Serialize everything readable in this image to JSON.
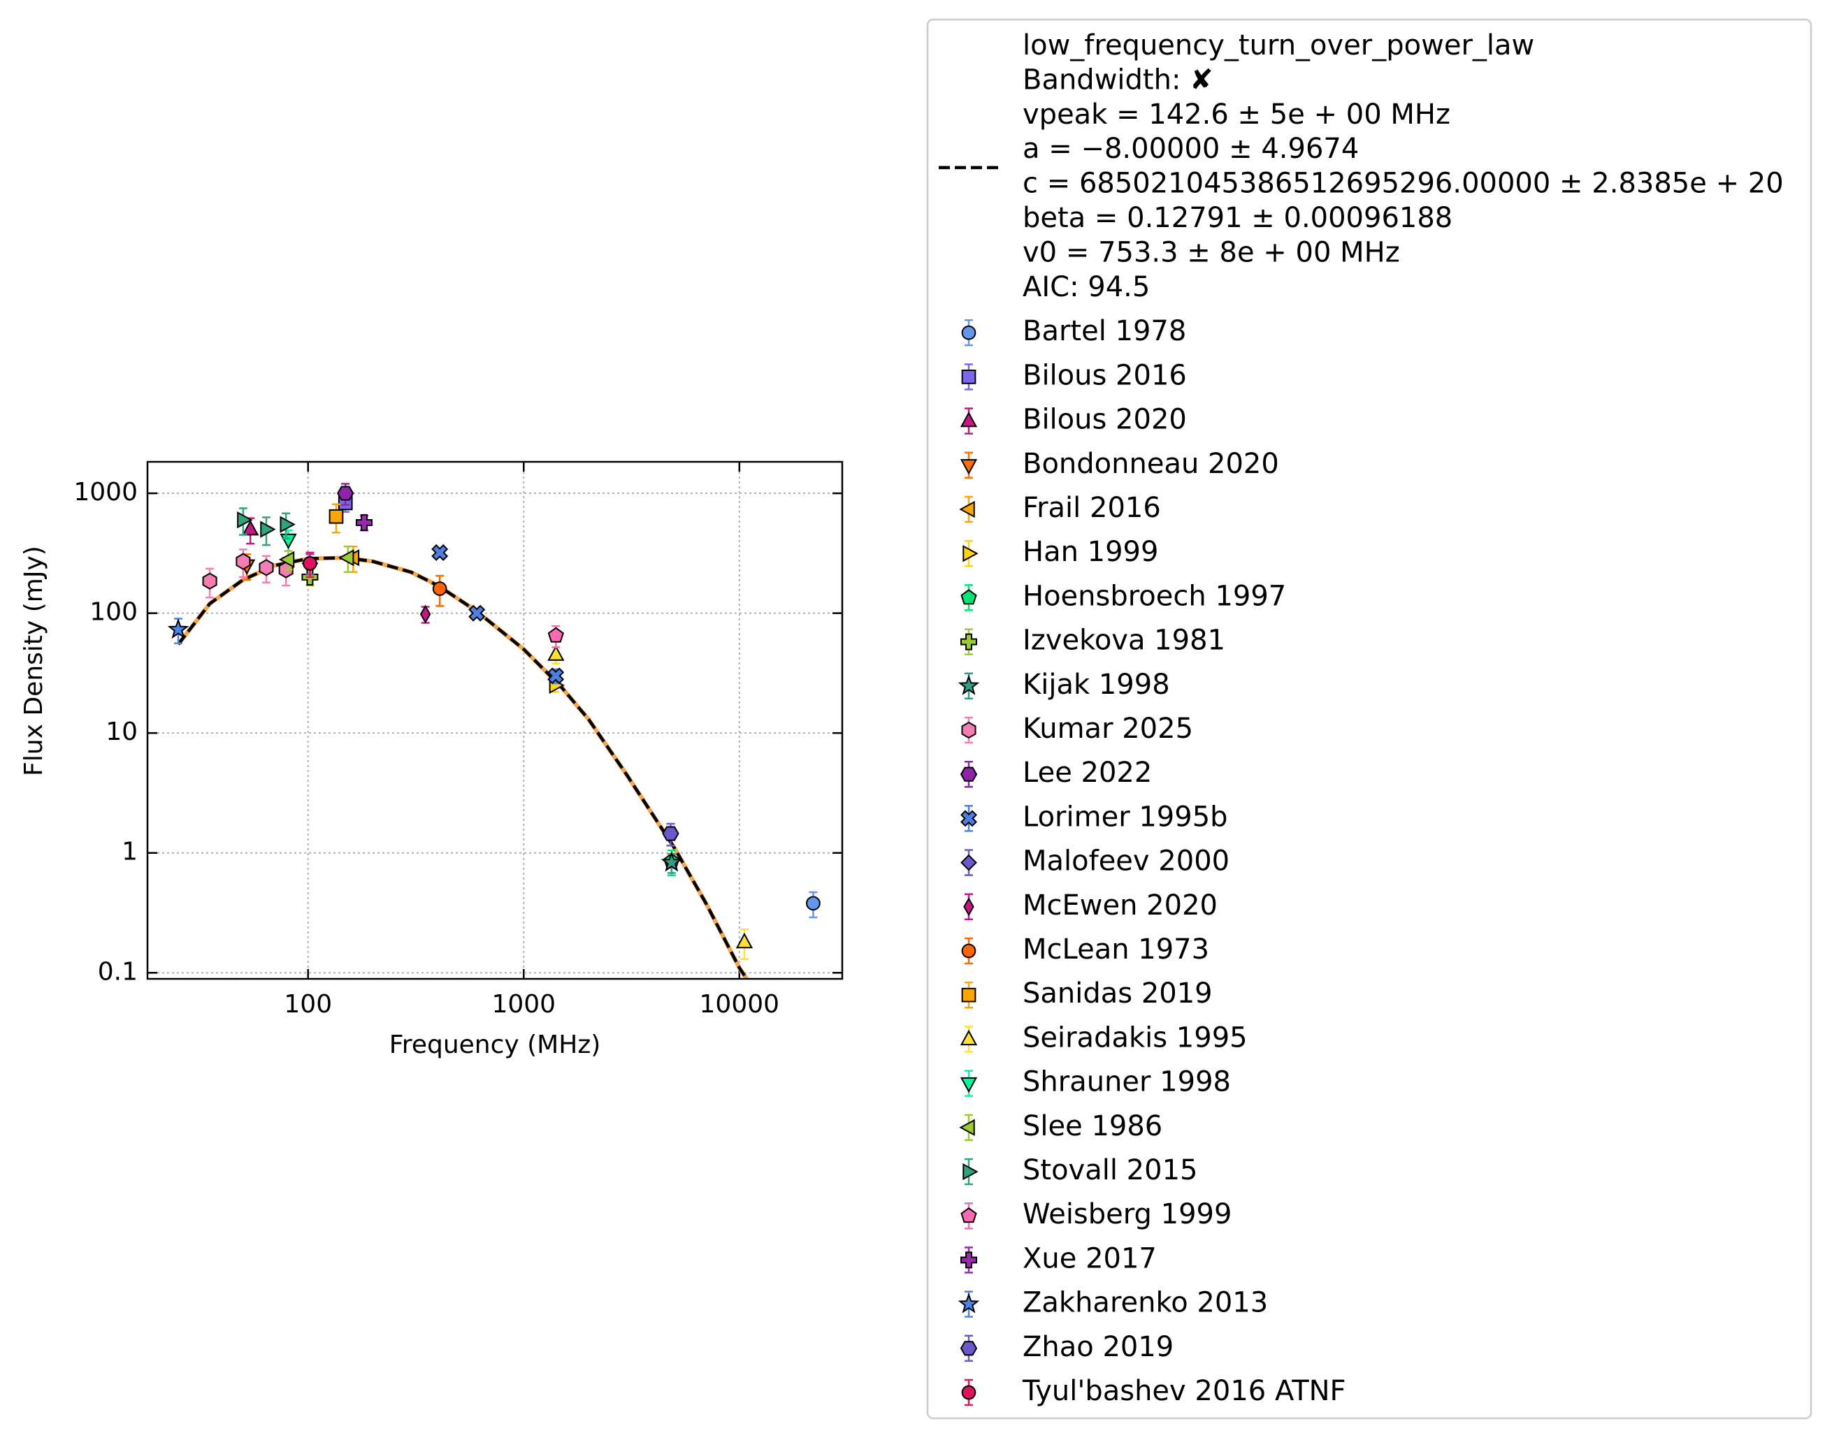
{
  "chart_data": {
    "type": "scatter",
    "xlabel": "Frequency (MHz)",
    "ylabel": "Flux Density (mJy)",
    "xscale": "log",
    "yscale": "log",
    "grid": true,
    "xlim": [
      18,
      30000
    ],
    "ylim": [
      0.089,
      1830
    ],
    "xticks": [
      100,
      1000,
      10000
    ],
    "yticks": [
      0.1,
      1,
      10,
      100,
      1000
    ],
    "fit": {
      "name": "low_frequency_turn_over_power_law",
      "color": "#000000",
      "band_color": "#f5a54a",
      "details": [
        "Bandwidth: ✘",
        "vpeak = 142.6 ± 5e + 00 MHz",
        "a = −8.00000 ± 4.9674",
        "c = 685021045386512695296.00000 ± 2.8385e + 20",
        "beta = 0.12791 ± 0.00096188",
        "v0 = 753.3 ± 8e + 00 MHz",
        "AIC: 94.5"
      ],
      "x": [
        25,
        35,
        50,
        70,
        100,
        150,
        200,
        300,
        400,
        600,
        1000,
        1500,
        2000,
        3000,
        5000,
        7000,
        10000,
        11000
      ],
      "values": [
        55,
        120,
        190,
        250,
        285,
        290,
        270,
        220,
        170,
        105,
        50,
        24,
        13,
        4.5,
        1.1,
        0.38,
        0.11,
        0.085
      ]
    },
    "series": [
      {
        "name": "Bartel 1978",
        "marker": "o",
        "color": "#6495ED",
        "x": [
          22000
        ],
        "values": [
          0.38
        ],
        "errors": [
          0.09
        ]
      },
      {
        "name": "Bilous 2016",
        "marker": "s",
        "color": "#7B68EE",
        "x": [
          149
        ],
        "values": [
          830
        ],
        "errors": [
          130
        ]
      },
      {
        "name": "Bilous 2020",
        "marker": "^",
        "color": "#C71585",
        "x": [
          54
        ],
        "values": [
          500
        ],
        "errors": [
          120
        ]
      },
      {
        "name": "Bondonneau 2020",
        "marker": "v",
        "color": "#FF6F00",
        "x": [
          52
        ],
        "values": [
          250
        ],
        "errors": [
          60
        ]
      },
      {
        "name": "Frail 2016",
        "marker": "<",
        "color": "#FFA500",
        "x": [
          162
        ],
        "values": [
          290
        ],
        "errors": [
          70
        ]
      },
      {
        "name": "Han 1999",
        "marker": ">",
        "color": "#FFD700",
        "x": [
          1400
        ],
        "values": [
          25
        ],
        "errors": [
          3
        ]
      },
      {
        "name": "Hoensbroech 1997",
        "marker": "p",
        "color": "#00E676",
        "x": [
          4850
        ],
        "values": [
          0.85
        ],
        "errors": [
          0.2
        ]
      },
      {
        "name": "Izvekova 1981",
        "marker": "P",
        "color": "#9ACD32",
        "x": [
          102
        ],
        "values": [
          200
        ],
        "errors": [
          30
        ]
      },
      {
        "name": "Kijak 1998",
        "marker": "*",
        "color": "#2E9E88",
        "x": [
          4850
        ],
        "values": [
          0.83
        ],
        "errors": [
          0.15
        ]
      },
      {
        "name": "Kumar 2025",
        "marker": "h",
        "color": "#F57DB3",
        "x": [
          35,
          50,
          64,
          79
        ],
        "values": [
          185,
          270,
          240,
          230
        ],
        "errors": [
          50,
          70,
          60,
          60
        ]
      },
      {
        "name": "Lee 2022",
        "marker": "H",
        "color": "#8E24AA",
        "x": [
          149
        ],
        "values": [
          1000
        ],
        "errors": [
          200
        ]
      },
      {
        "name": "Lorimer 1995b",
        "marker": "X",
        "color": "#4F7FE0",
        "x": [
          408,
          606,
          1408
        ],
        "values": [
          320,
          100,
          30
        ],
        "errors": [
          20,
          8,
          4
        ]
      },
      {
        "name": "Malofeev 2000",
        "marker": "D",
        "color": "#6A5ACD",
        "x": [
          102
        ],
        "values": [
          260
        ],
        "errors": [
          50
        ]
      },
      {
        "name": "McEwen 2020",
        "marker": "d",
        "color": "#C71585",
        "x": [
          350
        ],
        "values": [
          98
        ],
        "errors": [
          15
        ]
      },
      {
        "name": "McLean 1973",
        "marker": "o",
        "color": "#FF6600",
        "x": [
          408
        ],
        "values": [
          160
        ],
        "errors": [
          45
        ]
      },
      {
        "name": "Sanidas 2019",
        "marker": "s",
        "color": "#FFA500",
        "x": [
          135
        ],
        "values": [
          640
        ],
        "errors": [
          170
        ]
      },
      {
        "name": "Seiradakis 1995",
        "marker": "^",
        "color": "#FFE135",
        "x": [
          1410,
          10550
        ],
        "values": [
          45,
          0.18
        ],
        "errors": [
          7,
          0.05
        ]
      },
      {
        "name": "Shrauner 1998",
        "marker": "v",
        "color": "#00FA9A",
        "x": [
          81
        ],
        "values": [
          410
        ],
        "errors": [
          80
        ]
      },
      {
        "name": "Slee 1986",
        "marker": "<",
        "color": "#9ACD32",
        "x": [
          81,
          153
        ],
        "values": [
          280,
          290
        ],
        "errors": [
          50,
          70
        ]
      },
      {
        "name": "Stovall 2015",
        "marker": ">",
        "color": "#2FA57E",
        "x": [
          50,
          64,
          79
        ],
        "values": [
          600,
          500,
          550
        ],
        "errors": [
          150,
          130,
          130
        ]
      },
      {
        "name": "Weisberg 1999",
        "marker": "p",
        "color": "#FF69B4",
        "x": [
          1410
        ],
        "values": [
          65
        ],
        "errors": [
          13
        ]
      },
      {
        "name": "Xue 2017",
        "marker": "P",
        "color": "#9C27B0",
        "x": [
          182
        ],
        "values": [
          570
        ],
        "errors": [
          80
        ]
      },
      {
        "name": "Zakharenko 2013",
        "marker": "*",
        "color": "#4A86E8",
        "x": [
          25
        ],
        "values": [
          73
        ],
        "errors": [
          17
        ]
      },
      {
        "name": "Zhao 2019",
        "marker": "H",
        "color": "#6A5ACD",
        "x": [
          4800
        ],
        "values": [
          1.45
        ],
        "errors": [
          0.3
        ]
      },
      {
        "name": "Tyul'bashev 2016 ATNF",
        "marker": "o",
        "color": "#E0115F",
        "x": [
          102
        ],
        "values": [
          260
        ],
        "errors": [
          60
        ]
      }
    ]
  }
}
